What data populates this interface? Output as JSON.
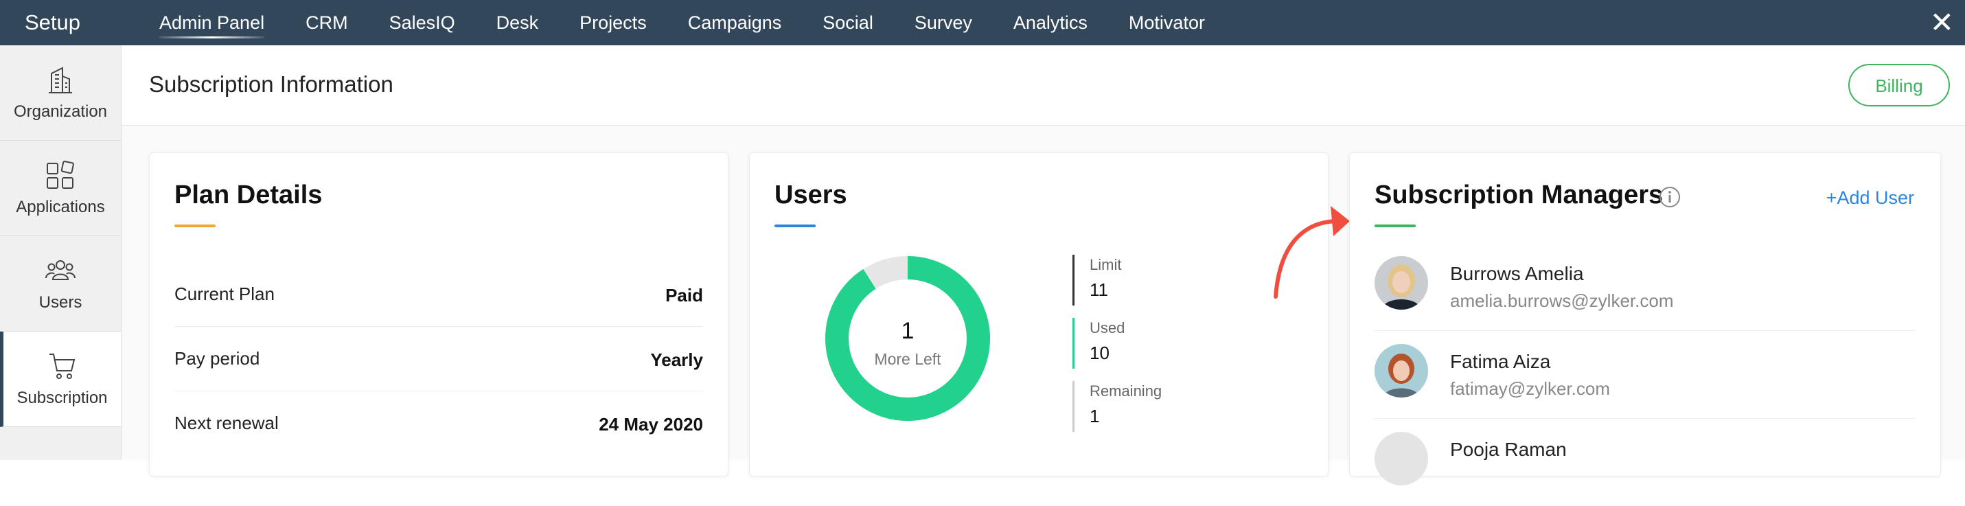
{
  "topbar": {
    "setup_label": "Setup",
    "nav": [
      {
        "label": "Admin Panel",
        "active": true
      },
      {
        "label": "CRM"
      },
      {
        "label": "SalesIQ"
      },
      {
        "label": "Desk"
      },
      {
        "label": "Projects"
      },
      {
        "label": "Campaigns"
      },
      {
        "label": "Social"
      },
      {
        "label": "Survey"
      },
      {
        "label": "Analytics"
      },
      {
        "label": "Motivator"
      }
    ],
    "close_glyph": "✕"
  },
  "sidebar": {
    "items": [
      {
        "label": "Organization",
        "icon": "building-icon"
      },
      {
        "label": "Applications",
        "icon": "apps-grid-icon"
      },
      {
        "label": "Users",
        "icon": "users-icon"
      },
      {
        "label": "Subscription",
        "icon": "cart-icon",
        "active": true
      }
    ]
  },
  "header": {
    "title": "Subscription Information",
    "billing_label": "Billing"
  },
  "plan": {
    "title": "Plan Details",
    "accent": "#f0a830",
    "rows": [
      {
        "key": "Current Plan",
        "value": "Paid"
      },
      {
        "key": "Pay period",
        "value": "Yearly"
      },
      {
        "key": "Next renewal",
        "value": "24 May 2020"
      }
    ]
  },
  "users": {
    "title": "Users",
    "accent": "#2a86e0",
    "ring_color": "#22d18b",
    "ring_rest_color": "#e6e6e6",
    "center_value": "1",
    "center_label": "More Left",
    "used_fraction": 0.909,
    "stats": [
      {
        "label": "Limit",
        "value": "11",
        "color": "#333333"
      },
      {
        "label": "Used",
        "value": "10",
        "color": "#22d18b"
      },
      {
        "label": "Remaining",
        "value": "1",
        "color": "#cccccc"
      }
    ]
  },
  "managers": {
    "title": "Subscription Managers",
    "accent": "#3fb45f",
    "add_label": "+Add User",
    "list": [
      {
        "name": "Burrows Amelia",
        "email": "amelia.burrows@zylker.com"
      },
      {
        "name": "Fatima Aiza",
        "email": "fatimay@zylker.com"
      },
      {
        "name": "Pooja Raman",
        "email": ""
      }
    ]
  },
  "annotation": {
    "arrow_color": "#f04e3e"
  }
}
